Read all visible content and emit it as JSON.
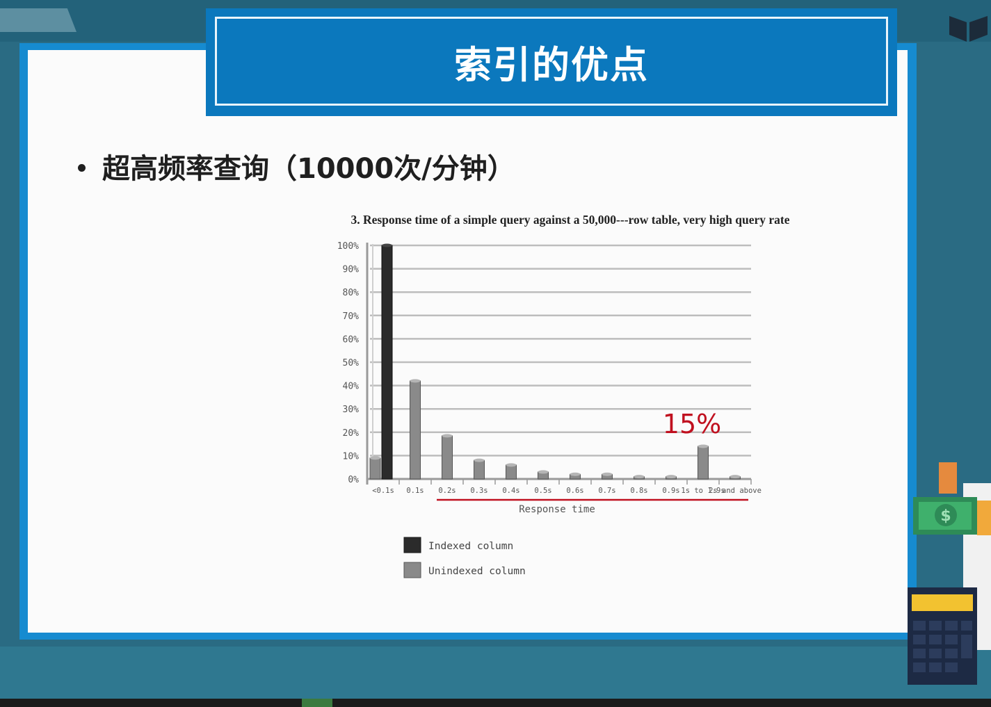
{
  "slide": {
    "title": "索引的优点",
    "bullet": "超高频率查询（10000次/分钟）"
  },
  "annotation": {
    "text": "15%",
    "color": "#c0101f"
  },
  "colors": {
    "title_bar": "#0b78bd",
    "frame": "#168bd0",
    "indexed": "#2b2b2b",
    "unindexed": "#8a8a8a",
    "underline": "#c0101f"
  },
  "chart_data": {
    "type": "bar",
    "title": "3. Response time of a simple query against a 50,000---row table, very high query rate",
    "xlabel": "Response time",
    "ylabel": "",
    "ylim": [
      0,
      100
    ],
    "yticks": [
      "0%",
      "10%",
      "20%",
      "30%",
      "40%",
      "50%",
      "60%",
      "70%",
      "80%",
      "90%",
      "100%"
    ],
    "categories": [
      "<0.1s",
      "0.1s",
      "0.2s",
      "0.3s",
      "0.4s",
      "0.5s",
      "0.6s",
      "0.7s",
      "0.8s",
      "0.9s",
      "1s to 1.9s",
      "2s and above"
    ],
    "series": [
      {
        "name": "Indexed column",
        "values": [
          100,
          0,
          0,
          0,
          0,
          0,
          0,
          0,
          0,
          0,
          0,
          0
        ]
      },
      {
        "name": "Unindexed column",
        "values": [
          9,
          42,
          18.5,
          8,
          6,
          3,
          2,
          2,
          1,
          1,
          14,
          1
        ]
      }
    ],
    "legend": "bottom-left",
    "grid": true
  }
}
